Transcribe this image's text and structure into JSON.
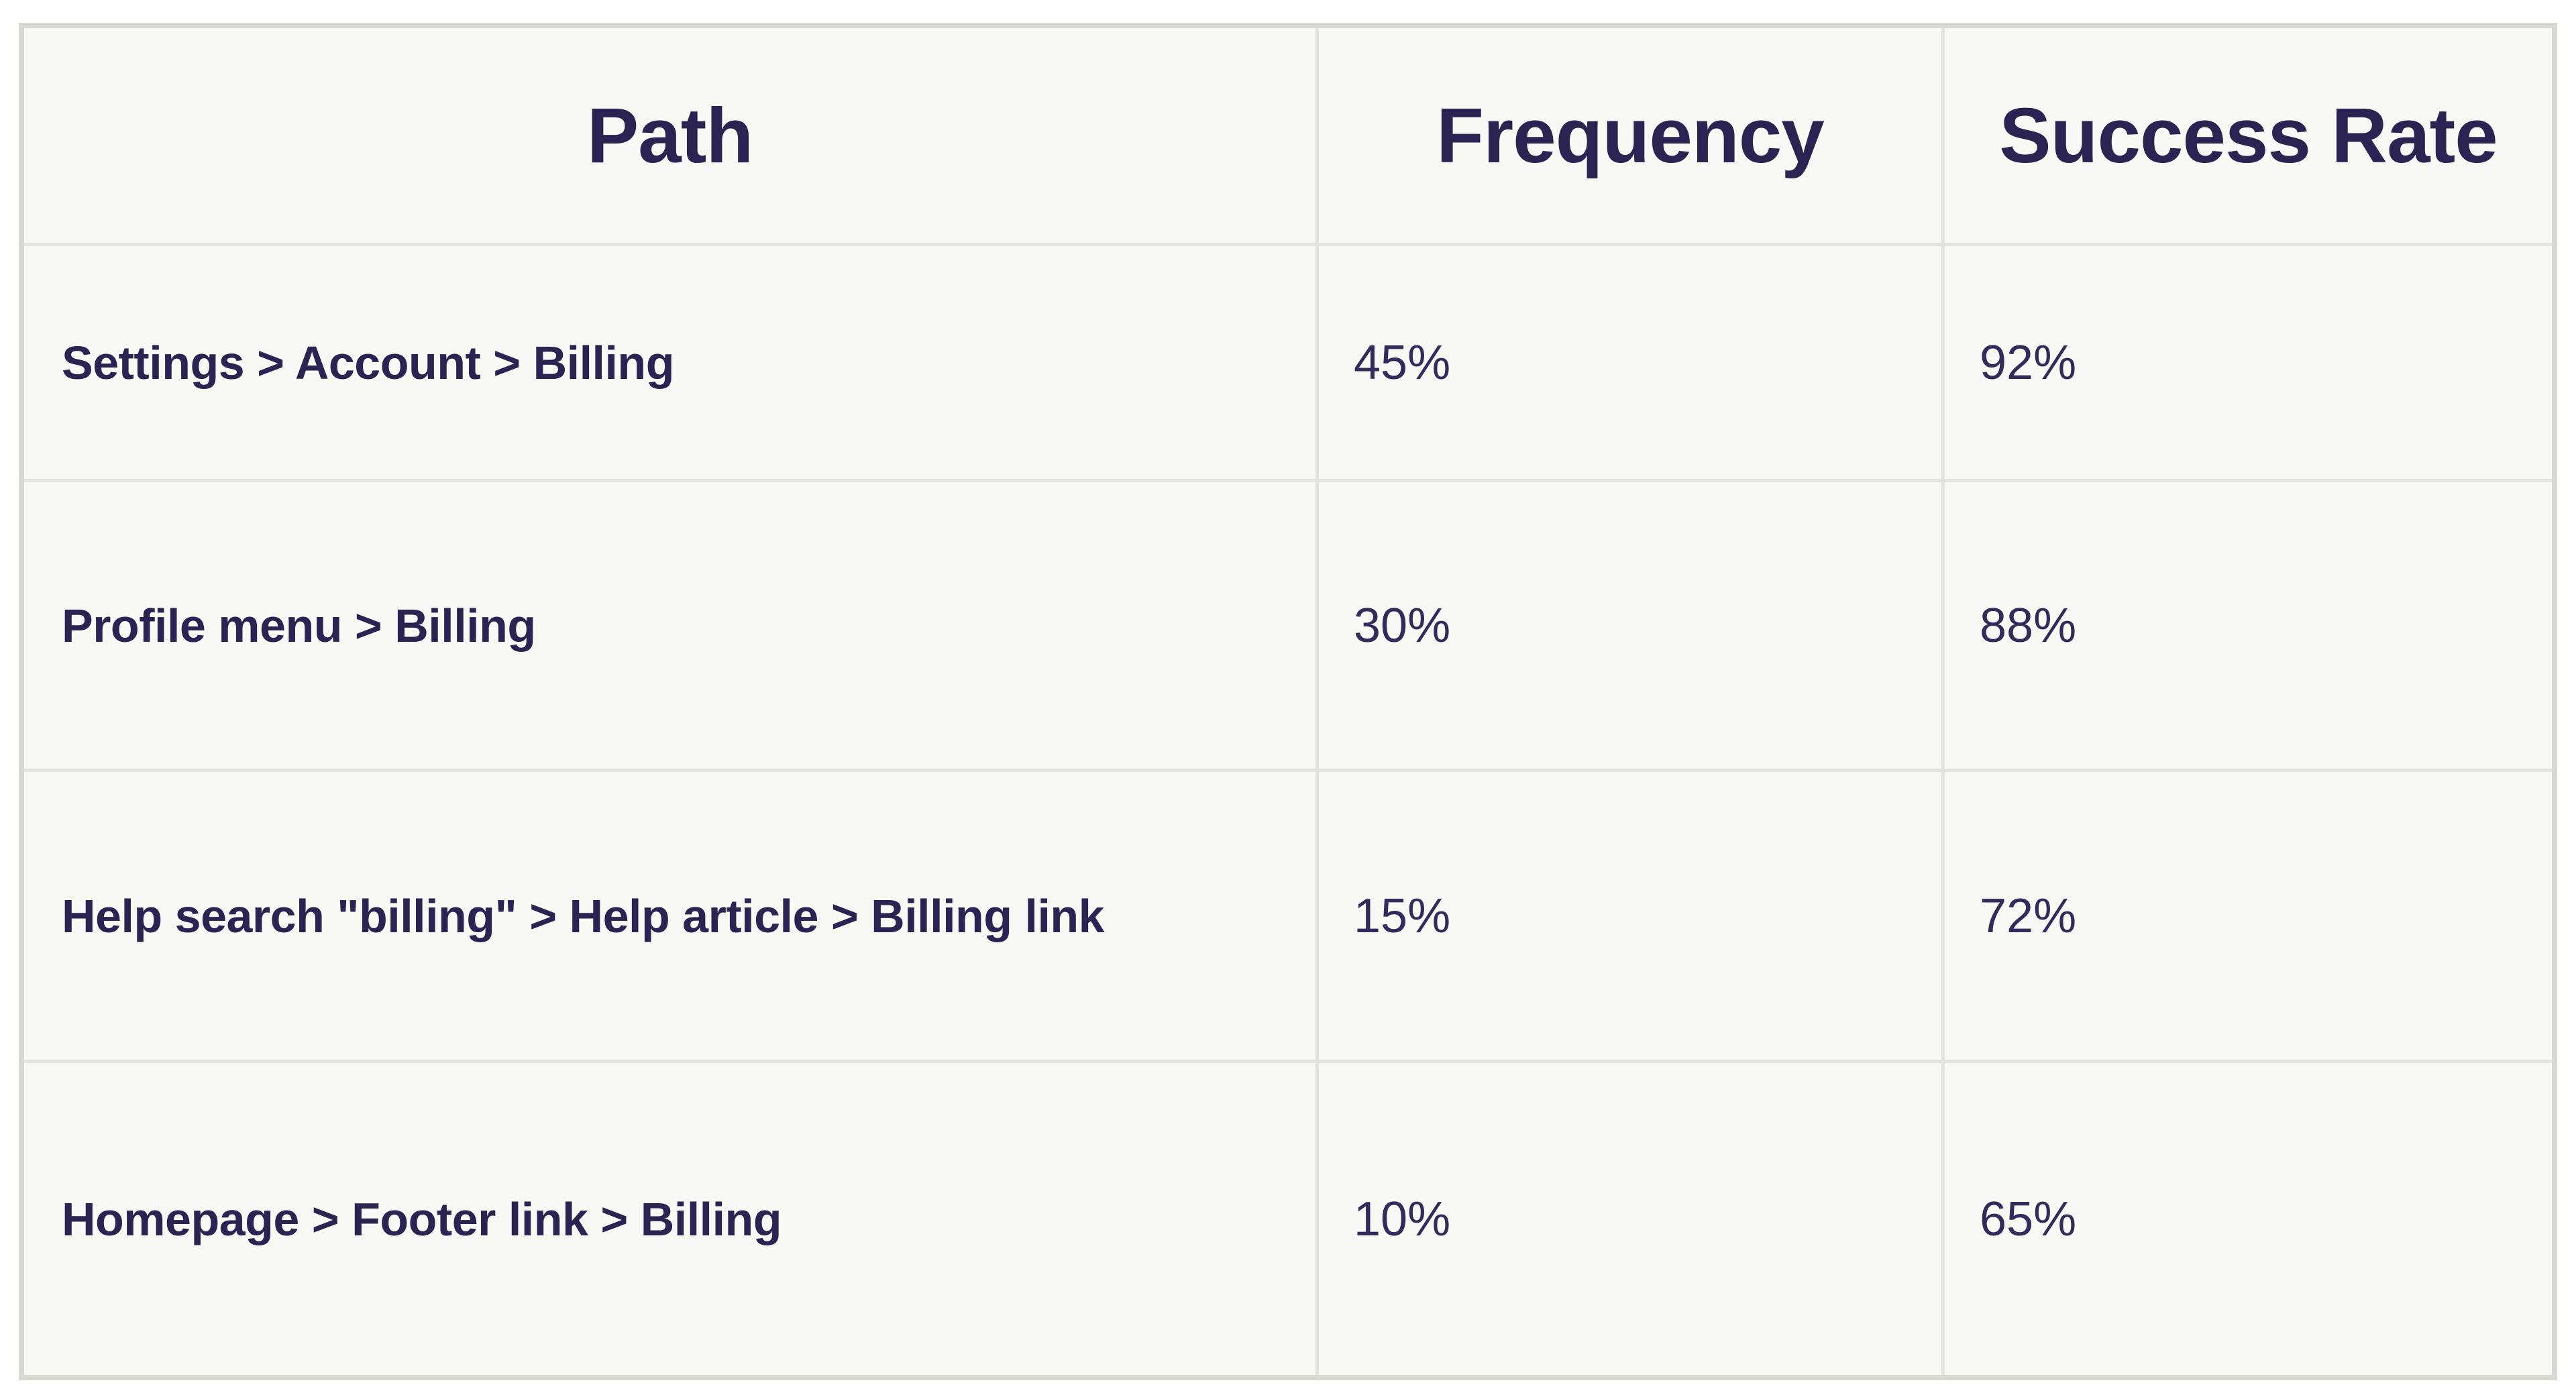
{
  "table": {
    "columns": [
      {
        "label": "Path"
      },
      {
        "label": "Frequency"
      },
      {
        "label": "Success Rate"
      }
    ],
    "rows": [
      {
        "path": "Settings > Account > Billing",
        "frequency": "45%",
        "success_rate": "92%"
      },
      {
        "path": "Profile menu > Billing",
        "frequency": "30%",
        "success_rate": "88%"
      },
      {
        "path": "Help search \"billing\" > Help article > Billing link",
        "frequency": "15%",
        "success_rate": "72%"
      },
      {
        "path": "Homepage > Footer link > Billing",
        "frequency": "10%",
        "success_rate": "65%"
      }
    ],
    "colors": {
      "heading_text": "#2b2351",
      "value_text": "#332b5c",
      "cell_background": "#f8f8f5",
      "grid_border": "#e3e3dd",
      "outer_border": "#d9d9d3",
      "page_background": "#ffffff"
    }
  },
  "chart_data": {
    "type": "table",
    "title": "",
    "columns": [
      "Path",
      "Frequency",
      "Success Rate"
    ],
    "rows": [
      [
        "Settings > Account > Billing",
        "45%",
        "92%"
      ],
      [
        "Profile menu > Billing",
        "30%",
        "88%"
      ],
      [
        "Help search \"billing\" > Help article > Billing link",
        "15%",
        "72%"
      ],
      [
        "Homepage > Footer link > Billing",
        "10%",
        "65%"
      ]
    ],
    "frequency_values_percent": [
      45,
      30,
      15,
      10
    ],
    "success_rate_values_percent": [
      92,
      88,
      72,
      65
    ]
  }
}
